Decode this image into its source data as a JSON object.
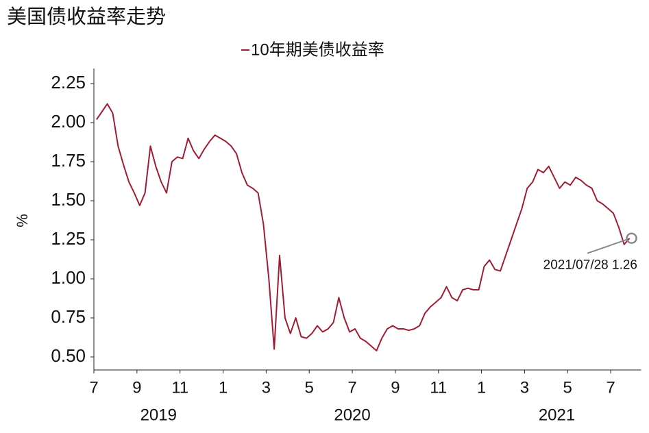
{
  "chart_data": {
    "type": "line",
    "title": "美国债收益率走势",
    "y_label": "%",
    "x": [
      "2019-07",
      "2019-07",
      "2019-07",
      "2019-07",
      "2019-08",
      "2019-08",
      "2019-08",
      "2019-08",
      "2019-09",
      "2019-09",
      "2019-09",
      "2019-09",
      "2019-10",
      "2019-10",
      "2019-10",
      "2019-10",
      "2019-11",
      "2019-11",
      "2019-11",
      "2019-11",
      "2019-12",
      "2019-12",
      "2019-12",
      "2019-12",
      "2020-01",
      "2020-01",
      "2020-01",
      "2020-01",
      "2020-02",
      "2020-02",
      "2020-02",
      "2020-02",
      "2020-03",
      "2020-03",
      "2020-03",
      "2020-03",
      "2020-04",
      "2020-04",
      "2020-04",
      "2020-04",
      "2020-05",
      "2020-05",
      "2020-05",
      "2020-05",
      "2020-06",
      "2020-06",
      "2020-06",
      "2020-06",
      "2020-07",
      "2020-07",
      "2020-07",
      "2020-07",
      "2020-08",
      "2020-08",
      "2020-08",
      "2020-08",
      "2020-09",
      "2020-09",
      "2020-09",
      "2020-09",
      "2020-10",
      "2020-10",
      "2020-10",
      "2020-10",
      "2020-11",
      "2020-11",
      "2020-11",
      "2020-11",
      "2020-12",
      "2020-12",
      "2020-12",
      "2020-12",
      "2021-01",
      "2021-01",
      "2021-01",
      "2021-01",
      "2021-02",
      "2021-02",
      "2021-02",
      "2021-02",
      "2021-03",
      "2021-03",
      "2021-03",
      "2021-03",
      "2021-04",
      "2021-04",
      "2021-04",
      "2021-04",
      "2021-05",
      "2021-05",
      "2021-05",
      "2021-05",
      "2021-06",
      "2021-06",
      "2021-06",
      "2021-06",
      "2021-07",
      "2021-07",
      "2021-07",
      "2021-07"
    ],
    "series": [
      {
        "name": "10年期美债收益率",
        "color": "#a01c32",
        "values": [
          2.02,
          2.07,
          2.12,
          2.06,
          1.85,
          1.73,
          1.62,
          1.55,
          1.47,
          1.55,
          1.85,
          1.72,
          1.62,
          1.55,
          1.75,
          1.78,
          1.77,
          1.9,
          1.82,
          1.77,
          1.83,
          1.88,
          1.92,
          1.9,
          1.88,
          1.85,
          1.8,
          1.68,
          1.6,
          1.58,
          1.55,
          1.35,
          1.0,
          0.55,
          1.15,
          0.75,
          0.65,
          0.75,
          0.63,
          0.62,
          0.65,
          0.7,
          0.66,
          0.68,
          0.72,
          0.88,
          0.75,
          0.66,
          0.68,
          0.62,
          0.6,
          0.57,
          0.54,
          0.62,
          0.68,
          0.7,
          0.68,
          0.68,
          0.67,
          0.68,
          0.7,
          0.78,
          0.82,
          0.85,
          0.88,
          0.95,
          0.88,
          0.86,
          0.93,
          0.94,
          0.93,
          0.93,
          1.08,
          1.12,
          1.06,
          1.05,
          1.15,
          1.25,
          1.35,
          1.45,
          1.58,
          1.62,
          1.7,
          1.68,
          1.72,
          1.65,
          1.58,
          1.62,
          1.6,
          1.65,
          1.63,
          1.6,
          1.58,
          1.5,
          1.48,
          1.45,
          1.42,
          1.33,
          1.22,
          1.26
        ]
      }
    ],
    "xlim": [
      "2019-07",
      "2021-08"
    ],
    "xticks": [
      {
        "value": "2019-07",
        "label": "7"
      },
      {
        "value": "2019-09",
        "label": "9"
      },
      {
        "value": "2019-11",
        "label": "11"
      },
      {
        "value": "2020-01",
        "label": "1"
      },
      {
        "value": "2020-03",
        "label": "3"
      },
      {
        "value": "2020-05",
        "label": "5"
      },
      {
        "value": "2020-07",
        "label": "7"
      },
      {
        "value": "2020-09",
        "label": "9"
      },
      {
        "value": "2020-11",
        "label": "11"
      },
      {
        "value": "2021-01",
        "label": "1"
      },
      {
        "value": "2021-03",
        "label": "3"
      },
      {
        "value": "2021-05",
        "label": "5"
      },
      {
        "value": "2021-07",
        "label": "7"
      }
    ],
    "x_groups": [
      "2019",
      "2020",
      "2021"
    ],
    "ylim": [
      0.5,
      2.25
    ],
    "yticks": [
      {
        "value": 0.5,
        "label": "0.50"
      },
      0.75,
      {
        "value": 1,
        "label": "1.00"
      },
      1.25,
      {
        "value": 1.5,
        "label": "1.50"
      },
      1.75,
      {
        "value": 2,
        "label": "2.00"
      },
      2.25
    ],
    "grid": false,
    "annotation": {
      "text": "2021/07/28 1.26"
    }
  }
}
